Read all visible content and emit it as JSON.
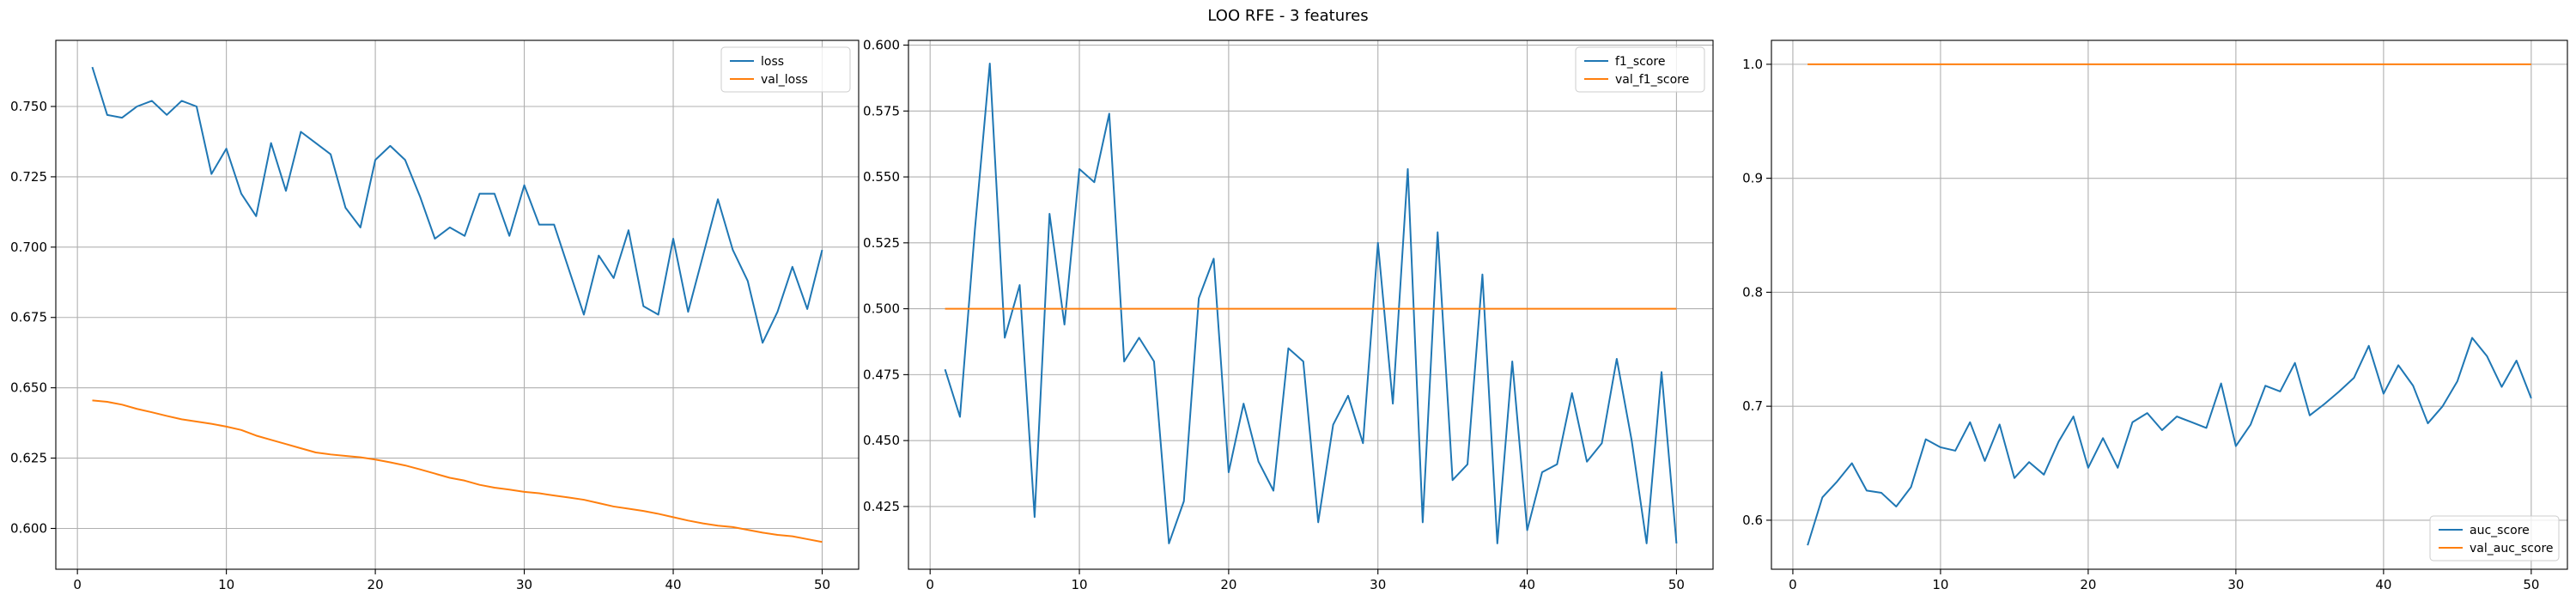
{
  "figure": {
    "title": "LOO RFE - 3 features"
  },
  "colors": {
    "series_1": "#1f77b4",
    "series_2": "#ff7f0e",
    "grid": "#b0b0b0",
    "axes": "#000000"
  },
  "chart_data": [
    {
      "type": "line",
      "x": [
        1,
        2,
        3,
        4,
        5,
        6,
        7,
        8,
        9,
        10,
        11,
        12,
        13,
        14,
        15,
        16,
        17,
        18,
        19,
        20,
        21,
        22,
        23,
        24,
        25,
        26,
        27,
        28,
        29,
        30,
        31,
        32,
        33,
        34,
        35,
        36,
        37,
        38,
        39,
        40,
        41,
        42,
        43,
        44,
        45,
        46,
        47,
        48,
        49,
        50
      ],
      "series": [
        {
          "name": "loss",
          "color": "#1f77b4",
          "values": [
            0.764,
            0.747,
            0.746,
            0.75,
            0.752,
            0.747,
            0.752,
            0.75,
            0.726,
            0.735,
            0.719,
            0.711,
            0.737,
            0.72,
            0.741,
            0.737,
            0.733,
            0.714,
            0.707,
            0.731,
            0.736,
            0.731,
            0.718,
            0.703,
            0.707,
            0.704,
            0.719,
            0.719,
            0.704,
            0.722,
            0.708,
            0.708,
            0.692,
            0.676,
            0.697,
            0.689,
            0.706,
            0.679,
            0.676,
            0.703,
            0.677,
            0.697,
            0.717,
            0.699,
            0.688,
            0.666,
            0.677,
            0.693,
            0.678,
            0.699
          ]
        },
        {
          "name": "val_loss",
          "color": "#ff7f0e",
          "values": [
            0.6455,
            0.645,
            0.644,
            0.6425,
            0.6413,
            0.64,
            0.6388,
            0.638,
            0.6372,
            0.6362,
            0.635,
            0.633,
            0.6315,
            0.63,
            0.6285,
            0.627,
            0.6263,
            0.6258,
            0.6253,
            0.6245,
            0.6235,
            0.6224,
            0.621,
            0.6195,
            0.618,
            0.617,
            0.6155,
            0.6145,
            0.6138,
            0.613,
            0.6125,
            0.6117,
            0.611,
            0.6102,
            0.609,
            0.6078,
            0.607,
            0.6062,
            0.6052,
            0.604,
            0.6028,
            0.6018,
            0.601,
            0.6005,
            0.5995,
            0.5985,
            0.5977,
            0.5972,
            0.5962,
            0.5952
          ]
        }
      ],
      "xlim": [
        -1.45,
        52.45
      ],
      "ylim": [
        0.5855,
        0.7735
      ],
      "xticks": [
        0,
        10,
        20,
        30,
        40,
        50
      ],
      "yticks": [
        0.6,
        0.625,
        0.65,
        0.675,
        0.7,
        0.725,
        0.75
      ],
      "xtick_labels": [
        "0",
        "10",
        "20",
        "30",
        "40",
        "50"
      ],
      "ytick_labels": [
        "0.600",
        "0.625",
        "0.650",
        "0.675",
        "0.700",
        "0.725",
        "0.750"
      ],
      "grid": true,
      "legend": "top-right"
    },
    {
      "type": "line",
      "x": [
        1,
        2,
        3,
        4,
        5,
        6,
        7,
        8,
        9,
        10,
        11,
        12,
        13,
        14,
        15,
        16,
        17,
        18,
        19,
        20,
        21,
        22,
        23,
        24,
        25,
        26,
        27,
        28,
        29,
        30,
        31,
        32,
        33,
        34,
        35,
        36,
        37,
        38,
        39,
        40,
        41,
        42,
        43,
        44,
        45,
        46,
        47,
        48,
        49,
        50
      ],
      "series": [
        {
          "name": "f1_score",
          "color": "#1f77b4",
          "values": [
            0.477,
            0.459,
            0.53,
            0.593,
            0.489,
            0.509,
            0.421,
            0.536,
            0.494,
            0.553,
            0.548,
            0.574,
            0.48,
            0.489,
            0.48,
            0.411,
            0.427,
            0.504,
            0.519,
            0.438,
            0.464,
            0.442,
            0.431,
            0.485,
            0.48,
            0.419,
            0.456,
            0.467,
            0.449,
            0.525,
            0.464,
            0.553,
            0.419,
            0.529,
            0.435,
            0.441,
            0.513,
            0.411,
            0.48,
            0.416,
            0.438,
            0.441,
            0.468,
            0.442,
            0.449,
            0.481,
            0.45,
            0.411,
            0.476,
            0.411
          ]
        },
        {
          "name": "val_f1_score",
          "color": "#ff7f0e",
          "values": [
            0.5,
            0.5,
            0.5,
            0.5,
            0.5,
            0.5,
            0.5,
            0.5,
            0.5,
            0.5,
            0.5,
            0.5,
            0.5,
            0.5,
            0.5,
            0.5,
            0.5,
            0.5,
            0.5,
            0.5,
            0.5,
            0.5,
            0.5,
            0.5,
            0.5,
            0.5,
            0.5,
            0.5,
            0.5,
            0.5,
            0.5,
            0.5,
            0.5,
            0.5,
            0.5,
            0.5,
            0.5,
            0.5,
            0.5,
            0.5,
            0.5,
            0.5,
            0.5,
            0.5,
            0.5,
            0.5,
            0.5,
            0.5,
            0.5,
            0.5
          ]
        }
      ],
      "xlim": [
        -1.45,
        52.45
      ],
      "ylim": [
        0.4012,
        0.6018
      ],
      "xticks": [
        0,
        10,
        20,
        30,
        40,
        50
      ],
      "yticks": [
        0.425,
        0.45,
        0.475,
        0.5,
        0.525,
        0.55,
        0.575,
        0.6
      ],
      "xtick_labels": [
        "0",
        "10",
        "20",
        "30",
        "40",
        "50"
      ],
      "ytick_labels": [
        "0.425",
        "0.450",
        "0.475",
        "0.500",
        "0.525",
        "0.550",
        "0.575",
        "0.600"
      ],
      "grid": true,
      "legend": "top-right"
    },
    {
      "type": "line",
      "x": [
        1,
        2,
        3,
        4,
        5,
        6,
        7,
        8,
        9,
        10,
        11,
        12,
        13,
        14,
        15,
        16,
        17,
        18,
        19,
        20,
        21,
        22,
        23,
        24,
        25,
        26,
        27,
        28,
        29,
        30,
        31,
        32,
        33,
        34,
        35,
        36,
        37,
        38,
        39,
        40,
        41,
        42,
        43,
        44,
        45,
        46,
        47,
        48,
        49,
        50
      ],
      "series": [
        {
          "name": "auc_score",
          "color": "#1f77b4",
          "values": [
            0.578,
            0.62,
            0.634,
            0.65,
            0.626,
            0.624,
            0.612,
            0.629,
            0.671,
            0.664,
            0.661,
            0.686,
            0.652,
            0.684,
            0.637,
            0.651,
            0.64,
            0.669,
            0.691,
            0.646,
            0.672,
            0.646,
            0.686,
            0.694,
            0.679,
            0.691,
            0.686,
            0.681,
            0.72,
            0.665,
            0.684,
            0.718,
            0.713,
            0.738,
            0.692,
            0.702,
            0.713,
            0.725,
            0.753,
            0.711,
            0.736,
            0.718,
            0.685,
            0.7,
            0.722,
            0.76,
            0.744,
            0.717,
            0.74,
            0.707
          ]
        },
        {
          "name": "val_auc_score",
          "color": "#ff7f0e",
          "values": [
            1.0,
            1.0,
            1.0,
            1.0,
            1.0,
            1.0,
            1.0,
            1.0,
            1.0,
            1.0,
            1.0,
            1.0,
            1.0,
            1.0,
            1.0,
            1.0,
            1.0,
            1.0,
            1.0,
            1.0,
            1.0,
            1.0,
            1.0,
            1.0,
            1.0,
            1.0,
            1.0,
            1.0,
            1.0,
            1.0,
            1.0,
            1.0,
            1.0,
            1.0,
            1.0,
            1.0,
            1.0,
            1.0,
            1.0,
            1.0,
            1.0,
            1.0,
            1.0,
            1.0,
            1.0,
            1.0,
            1.0,
            1.0,
            1.0,
            1.0
          ]
        }
      ],
      "xlim": [
        -1.45,
        52.45
      ],
      "ylim": [
        0.557,
        1.021
      ],
      "xticks": [
        0,
        10,
        20,
        30,
        40,
        50
      ],
      "yticks": [
        0.6,
        0.7,
        0.8,
        0.9,
        1.0
      ],
      "xtick_labels": [
        "0",
        "10",
        "20",
        "30",
        "40",
        "50"
      ],
      "ytick_labels": [
        "0.6",
        "0.7",
        "0.8",
        "0.9",
        "1.0"
      ],
      "grid": true,
      "legend": "bottom-right"
    }
  ]
}
